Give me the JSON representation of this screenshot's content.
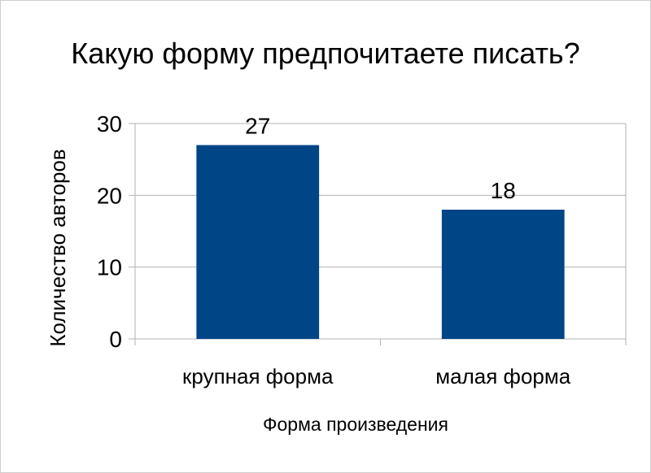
{
  "chart_data": {
    "type": "bar",
    "title": "Какую форму предпочитаете писать?",
    "xlabel": "Форма произведения",
    "ylabel": "Количество авторов",
    "categories": [
      "крупная форма",
      "малая форма"
    ],
    "values": [
      27,
      18
    ],
    "data_labels": [
      "27",
      "18"
    ],
    "y_ticks": [
      0,
      10,
      20,
      30
    ],
    "y_tick_labels": [
      "0",
      "10",
      "20",
      "30"
    ],
    "ylim": [
      0,
      30
    ],
    "grid": true,
    "legend": "none",
    "colors": {
      "bar": "#004586",
      "grid": "#b3b3b3",
      "axis": "#b3b3b3"
    }
  }
}
